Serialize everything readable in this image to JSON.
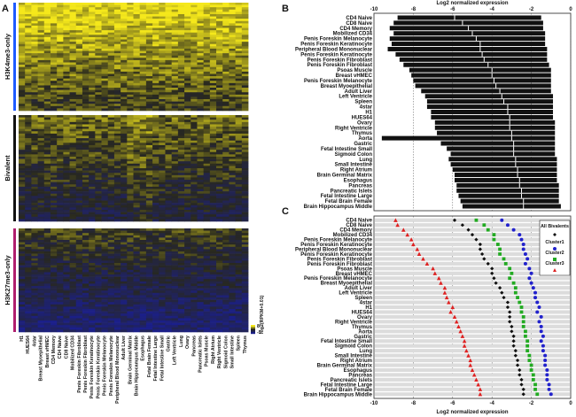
{
  "panels": {
    "a": "A",
    "b": "B",
    "c": "C"
  },
  "heatmap": {
    "type": "heatmap",
    "groups": [
      {
        "label": "H3K4me3-only",
        "color": "#1e5bff"
      },
      {
        "label": "Bivalent",
        "color": "#111111"
      },
      {
        "label": "H3K27me3-only",
        "color": "#b01e6e"
      }
    ],
    "columns": [
      "H1",
      "HUES64",
      "4star",
      "Breast Myoepithelial",
      "Breast vHMEC",
      "CD4 Memory",
      "CD4 Naive",
      "CD8 Naive",
      "Mobilized CD34",
      "Penis Foreskin Fibroblast",
      "Penis Foreskin Fibroblast",
      "Penis Foreskin Keratinocyte",
      "Penis Foreskin Keratinocyte",
      "Penis Foreskin Melanocyte",
      "Penis Foreskin Melanocyte",
      "Peripheral Blood Mononuclear",
      "Adult Liver",
      "Brain Germinal Matrix",
      "Brain Hippocampus Middle",
      "Esophagus",
      "Fetal Brain Female",
      "Fetal Intestine Large",
      "Fetal Intestine Small",
      "Gastric",
      "Left Ventricle",
      "Lung",
      "Ovary",
      "Pancreas",
      "Pancreatic Islets",
      "Psoas Muscle",
      "Right Atrium",
      "Right Ventricle",
      "Sigmoid Colon",
      "Small Intestine",
      "Spleen",
      "Thymus"
    ],
    "legend": {
      "label": "log2(RPKM+0.01)",
      "max": "8",
      "min": "-5"
    },
    "colors": {
      "high": "#f5e81b",
      "mid": "#3a3a1c",
      "low": "#1b1f8a"
    }
  },
  "chart_data": [
    {
      "type": "bar",
      "title": "Log2 normalized expression",
      "xlabel": "Log2 normalized expression",
      "xlim": [
        -10,
        0
      ],
      "xticks": [
        "-10",
        "-8",
        "-6",
        "-4",
        "-2",
        "0"
      ],
      "note": "floating bars spanning min..max with white median tick",
      "categories": [
        "CD4 Naive",
        "CD8 Naive",
        "CD4 Memory",
        "Mobilized CD34",
        "Penis Foreskin Melanocyte",
        "Penis Foreskin Keratinocyte",
        "Peripheral Blood Mononuclear",
        "Penis Foreskin Keratinocyte",
        "Penis Foreskin Fibroblast",
        "Penis Foreskin Fibroblast",
        "Psoas Muscle",
        "Breast vHMEC",
        "Penis Foreskin Melanocyte",
        "Breast Myoepithelial",
        "Adult Liver",
        "Left Ventricle",
        "Spleen",
        "4star",
        "H1",
        "HUES64",
        "Ovary",
        "Right Ventricle",
        "Thymus",
        "Aorta",
        "Gastric",
        "Fetal Intestine Small",
        "Sigmoid Colon",
        "Lung",
        "Small Intestine",
        "Right Atrium",
        "Brain Germinal Matrix",
        "Esophagus",
        "Pancreas",
        "Pancreatic Islets",
        "Fetal Intestine Large",
        "Fetal Brain Female",
        "Brain Hippocampus Middle"
      ],
      "low": [
        -8.8,
        -9.0,
        -9.2,
        -9.0,
        -9.2,
        -9.1,
        -9.3,
        -8.9,
        -8.7,
        -8.5,
        -8.2,
        -8.1,
        -8.0,
        -7.9,
        -7.6,
        -7.4,
        -7.3,
        -7.3,
        -7.1,
        -7.1,
        -6.9,
        -6.9,
        -6.8,
        -9.6,
        -6.6,
        -6.3,
        -6.1,
        -6.2,
        -6.1,
        -6.0,
        -5.9,
        -5.9,
        -5.8,
        -5.8,
        -5.7,
        -5.6,
        -5.5
      ],
      "median": [
        -5.9,
        -5.5,
        -5.2,
        -5.0,
        -4.8,
        -4.6,
        -4.6,
        -4.5,
        -4.4,
        -4.2,
        -4.0,
        -4.0,
        -3.9,
        -3.8,
        -3.6,
        -3.5,
        -3.4,
        -3.2,
        -3.2,
        -3.1,
        -3.1,
        -3.1,
        -3.0,
        -3.0,
        -2.9,
        -2.9,
        -2.9,
        -2.8,
        -2.8,
        -2.7,
        -2.7,
        -2.6,
        -2.6,
        -2.5,
        -2.5,
        -2.4,
        -2.4
      ],
      "high": [
        -1.5,
        -1.4,
        -1.4,
        -1.3,
        -1.3,
        -1.3,
        -1.2,
        -1.2,
        -1.2,
        -1.1,
        -1.0,
        -1.0,
        -1.0,
        -1.0,
        -1.0,
        -0.9,
        -0.9,
        -0.9,
        -0.9,
        -0.9,
        -0.8,
        -0.8,
        -0.8,
        -0.8,
        -0.8,
        -0.8,
        -0.8,
        -0.7,
        -0.7,
        -0.7,
        -0.7,
        -0.7,
        -0.6,
        -0.6,
        -0.6,
        -0.6,
        -0.5
      ]
    },
    {
      "type": "scatter",
      "xlabel": "Log2 normalized expression",
      "xlim": [
        -10,
        0
      ],
      "xticks": [
        "-10",
        "-8",
        "-6",
        "-4",
        "-2",
        "0"
      ],
      "legend": {
        "title": "All Bivalents",
        "entries": [
          "Cluster1",
          "Cluster2",
          "Cluster3"
        ]
      },
      "categories": [
        "CD4 Naive",
        "CD8 Naive",
        "CD4 Memory",
        "Mobilized CD34",
        "Penis Foreskin Melanocyte",
        "Penis Foreskin Keratinocyte",
        "Peripheral Blood Mononuclear",
        "Penis Foreskin Keratinocyte",
        "Penis Foreskin Fibroblast",
        "Penis Foreskin Fibroblast",
        "Psoas Muscle",
        "Breast vHMEC",
        "Penis Foreskin Melanocyte",
        "Breast Myoepithelial",
        "Adult Liver",
        "Left Ventricle",
        "Spleen",
        "4star",
        "H1",
        "HUES64",
        "Ovary",
        "Right Ventricle",
        "Thymus",
        "Aorta",
        "Gastric",
        "Fetal Intestine Small",
        "Sigmoid Colon",
        "Lung",
        "Small Intestine",
        "Right Atrium",
        "Brain Germinal Matrix",
        "Esophagus",
        "Pancreas",
        "Pancreatic Islets",
        "Fetal Intestine Large",
        "Fetal Brain Female",
        "Brain Hippocampus Middle"
      ],
      "series": [
        {
          "name": "All Bivalents",
          "color": "#111111",
          "marker": "diamond",
          "values": [
            -5.9,
            -5.5,
            -5.2,
            -5.0,
            -4.8,
            -4.6,
            -4.6,
            -4.5,
            -4.4,
            -4.2,
            -4.0,
            -4.0,
            -3.9,
            -3.8,
            -3.6,
            -3.5,
            -3.4,
            -3.2,
            -3.2,
            -3.1,
            -3.1,
            -3.1,
            -3.0,
            -3.0,
            -2.9,
            -2.9,
            -2.9,
            -2.8,
            -2.8,
            -2.7,
            -2.7,
            -2.6,
            -2.6,
            -2.5,
            -2.5,
            -2.4,
            -2.4
          ]
        },
        {
          "name": "Cluster1",
          "color": "#2222cc",
          "marker": "circle",
          "values": [
            -3.5,
            -3.2,
            -2.9,
            -2.6,
            -2.5,
            -2.4,
            -2.4,
            -2.3,
            -2.2,
            -2.3,
            -2.1,
            -2.0,
            -2.1,
            -2.0,
            -1.9,
            -1.8,
            -1.8,
            -1.7,
            -1.6,
            -1.7,
            -1.5,
            -1.6,
            -1.5,
            -1.5,
            -1.4,
            -1.5,
            -1.4,
            -1.4,
            -1.3,
            -1.3,
            -1.3,
            -1.2,
            -1.2,
            -1.2,
            -1.1,
            -1.1,
            -1.0
          ]
        },
        {
          "name": "Cluster2",
          "color": "#22aa22",
          "marker": "square",
          "values": [
            -4.8,
            -4.4,
            -4.2,
            -3.9,
            -3.9,
            -3.7,
            -3.6,
            -3.6,
            -3.4,
            -3.3,
            -3.1,
            -3.0,
            -3.1,
            -2.9,
            -2.8,
            -2.8,
            -2.7,
            -2.6,
            -2.5,
            -2.5,
            -2.4,
            -2.4,
            -2.4,
            -2.3,
            -2.3,
            -2.2,
            -2.2,
            -2.2,
            -2.1,
            -2.1,
            -2.0,
            -2.0,
            -1.9,
            -1.9,
            -1.8,
            -1.8,
            -1.7
          ]
        },
        {
          "name": "Cluster3",
          "color": "#dd2222",
          "marker": "triangle",
          "values": [
            -8.9,
            -8.8,
            -8.5,
            -8.3,
            -8.1,
            -8.0,
            -7.8,
            -7.7,
            -7.5,
            -7.3,
            -7.0,
            -6.9,
            -6.7,
            -6.6,
            -6.4,
            -6.4,
            -6.3,
            -6.2,
            -6.0,
            -6.1,
            -5.9,
            -5.8,
            -5.7,
            -5.6,
            -5.5,
            -5.4,
            -5.4,
            -5.3,
            -5.2,
            -5.1,
            -5.1,
            -5.0,
            -4.9,
            -4.8,
            -4.7,
            -4.6,
            -4.6
          ]
        }
      ]
    }
  ]
}
